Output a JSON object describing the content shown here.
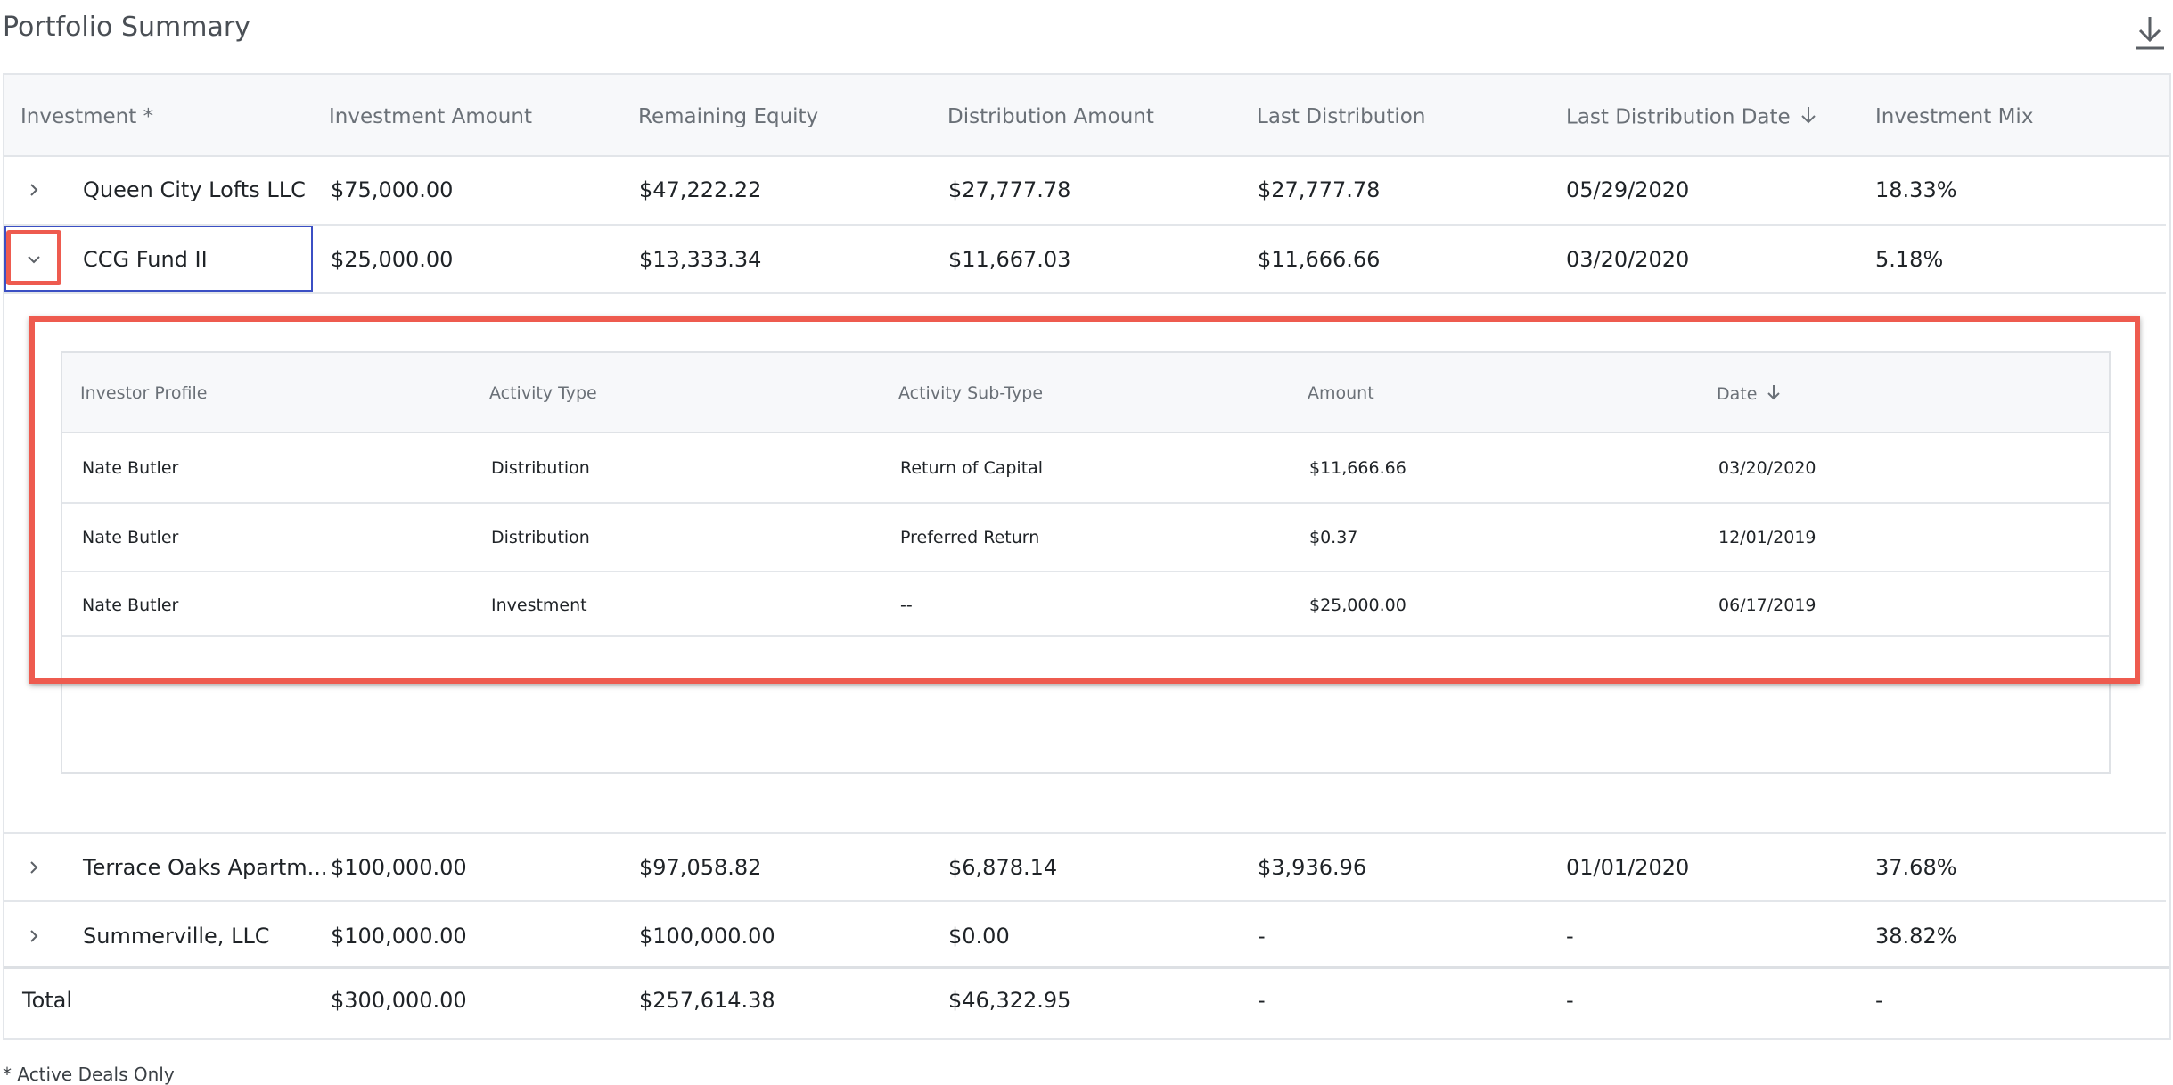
{
  "page": {
    "title": "Portfolio Summary",
    "download_icon": "download-icon",
    "footnote": "* Active Deals Only"
  },
  "main_table": {
    "headers": [
      "Investment *",
      "Investment Amount",
      "Remaining Equity",
      "Distribution Amount",
      "Last Distribution",
      "Last Distribution Date",
      "Investment Mix"
    ],
    "sorted_column": "Last Distribution Date",
    "sort_direction": "descending",
    "rows": [
      {
        "expanded": false,
        "investment": "Queen City Lofts LLC",
        "investment_amount": "$75,000.00",
        "remaining_equity": "$47,222.22",
        "distribution_amount": "$27,777.78",
        "last_distribution": "$27,777.78",
        "last_distribution_date": "05/29/2020",
        "investment_mix": "18.33%"
      },
      {
        "expanded": true,
        "investment": "CCG Fund II",
        "investment_amount": "$25,000.00",
        "remaining_equity": "$13,333.34",
        "distribution_amount": "$11,667.03",
        "last_distribution": "$11,666.66",
        "last_distribution_date": "03/20/2020",
        "investment_mix": "5.18%"
      },
      {
        "expanded": false,
        "investment": "Terrace Oaks Apartm...",
        "investment_amount": "$100,000.00",
        "remaining_equity": "$97,058.82",
        "distribution_amount": "$6,878.14",
        "last_distribution": "$3,936.96",
        "last_distribution_date": "01/01/2020",
        "investment_mix": "37.68%"
      },
      {
        "expanded": false,
        "investment": "Summerville, LLC",
        "investment_amount": "$100,000.00",
        "remaining_equity": "$100,000.00",
        "distribution_amount": "$0.00",
        "last_distribution": "-",
        "last_distribution_date": "-",
        "investment_mix": "38.82%"
      }
    ],
    "total": {
      "label": "Total",
      "investment_amount": "$300,000.00",
      "remaining_equity": "$257,614.38",
      "distribution_amount": "$46,322.95",
      "last_distribution": "-",
      "last_distribution_date": "-",
      "investment_mix": "-"
    }
  },
  "detail_table": {
    "headers": [
      "Investor Profile",
      "Activity Type",
      "Activity Sub-Type",
      "Amount",
      "Date"
    ],
    "sorted_column": "Date",
    "sort_direction": "descending",
    "rows": [
      {
        "investor_profile": "Nate Butler",
        "activity_type": "Distribution",
        "activity_sub_type": "Return of Capital",
        "amount": "$11,666.66",
        "date": "03/20/2020"
      },
      {
        "investor_profile": "Nate Butler",
        "activity_type": "Distribution",
        "activity_sub_type": "Preferred Return",
        "amount": "$0.37",
        "date": "12/01/2019"
      },
      {
        "investor_profile": "Nate Butler",
        "activity_type": "Investment",
        "activity_sub_type": "--",
        "amount": "$25,000.00",
        "date": "06/17/2019"
      }
    ]
  },
  "colors": {
    "highlight": "#ee5b4f",
    "selection_border": "#3b4fc4",
    "header_bg": "#f7f8fa"
  }
}
